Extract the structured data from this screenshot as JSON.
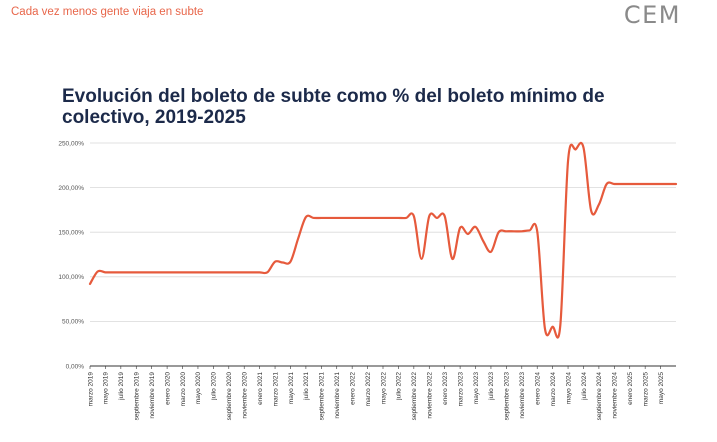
{
  "header": {
    "subtitle": "Cada vez menos gente viaja en subte",
    "brand": "CEM"
  },
  "chart_data": {
    "type": "line",
    "title": "Evolución del boleto de subte como % del boleto mínimo de colectivo, 2019-2025",
    "xlabel": "",
    "ylabel": "",
    "ylim": [
      0,
      250
    ],
    "yticks": [
      "0,00%",
      "50,00%",
      "100,00%",
      "150,00%",
      "200,00%",
      "250,00%"
    ],
    "grid": true,
    "color": "#e65a3c",
    "categories": [
      "marzo 2019",
      "mayo 2019",
      "julio 2019",
      "septiembre 2019",
      "noviembre 2019",
      "enero 2020",
      "marzo 2020",
      "mayo 2020",
      "julio 2020",
      "septiembre 2020",
      "noviembre 2020",
      "enero 2021",
      "marzo 2021",
      "mayo 2021",
      "julio 2021",
      "septiembre 2021",
      "noviembre 2021",
      "enero 2022",
      "marzo 2022",
      "mayo 2022",
      "julio 2022",
      "septiembre 2022",
      "noviembre 2022",
      "enero 2023",
      "marzo 2023",
      "mayo 2023",
      "julio 2023",
      "septiembre 2023",
      "noviembre 2023",
      "enero 2024",
      "marzo 2024",
      "mayo 2024",
      "julio 2024",
      "septiembre 2024",
      "noviembre 2024",
      "enero 2025",
      "marzo 2025",
      "mayo 2025"
    ],
    "x": [
      "2019-03",
      "2019-04",
      "2019-05",
      "2019-06",
      "2019-07",
      "2019-08",
      "2019-09",
      "2019-10",
      "2019-11",
      "2019-12",
      "2020-01",
      "2020-02",
      "2020-03",
      "2020-04",
      "2020-05",
      "2020-06",
      "2020-07",
      "2020-08",
      "2020-09",
      "2020-10",
      "2020-11",
      "2020-12",
      "2021-01",
      "2021-02",
      "2021-03",
      "2021-04",
      "2021-05",
      "2021-06",
      "2021-07",
      "2021-08",
      "2021-09",
      "2021-10",
      "2021-11",
      "2021-12",
      "2022-01",
      "2022-02",
      "2022-03",
      "2022-04",
      "2022-05",
      "2022-06",
      "2022-07",
      "2022-08",
      "2022-09",
      "2022-10",
      "2022-11",
      "2022-12",
      "2023-01",
      "2023-02",
      "2023-03",
      "2023-04",
      "2023-05",
      "2023-06",
      "2023-07",
      "2023-08",
      "2023-09",
      "2023-10",
      "2023-11",
      "2023-12",
      "2024-01",
      "2024-02",
      "2024-03",
      "2024-04",
      "2024-05",
      "2024-06",
      "2024-07",
      "2024-08",
      "2024-09",
      "2024-10",
      "2024-11",
      "2024-12",
      "2025-01",
      "2025-02",
      "2025-03",
      "2025-04",
      "2025-05",
      "2025-06",
      "2025-07"
    ],
    "series": [
      {
        "values": [
          92,
          106,
          105,
          105,
          105,
          105,
          105,
          105,
          105,
          105,
          105,
          105,
          105,
          105,
          105,
          105,
          105,
          105,
          105,
          105,
          105,
          105,
          105,
          105,
          117,
          116,
          117,
          143,
          167,
          166,
          166,
          166,
          166,
          166,
          166,
          166,
          166,
          166,
          166,
          166,
          166,
          166,
          168,
          120,
          168,
          166,
          168,
          120,
          155,
          148,
          156,
          140,
          128,
          150,
          151,
          151,
          151,
          152,
          151,
          42,
          44,
          46,
          230,
          243,
          245,
          174,
          181,
          204,
          204,
          204,
          204,
          204,
          204,
          204,
          204,
          204,
          204
        ]
      }
    ]
  }
}
